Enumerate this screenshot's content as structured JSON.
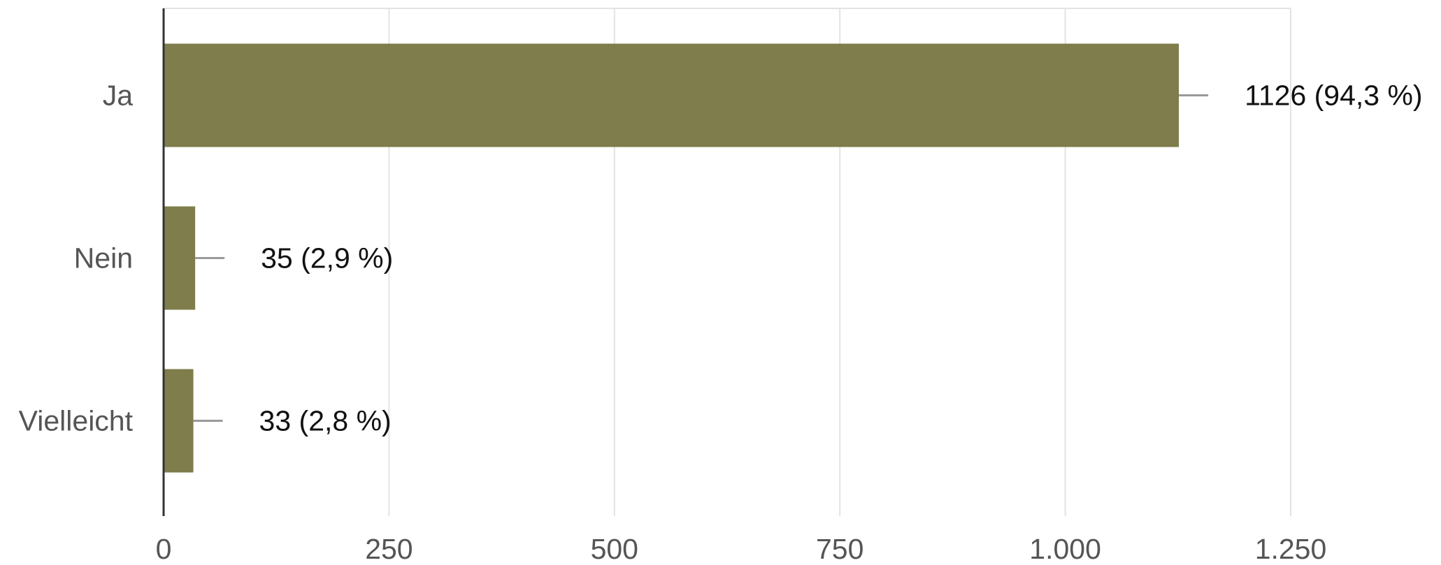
{
  "chart_data": {
    "type": "bar",
    "orientation": "horizontal",
    "title": "",
    "xlabel": "",
    "ylabel": "",
    "categories": [
      "Ja",
      "Nein",
      "Vielleicht"
    ],
    "values": [
      1126,
      35,
      33
    ],
    "data_labels": [
      "1126 (94,3 %)",
      "35 (2,9 %)",
      "33 (2,8 %)"
    ],
    "xlim": [
      0,
      1250
    ],
    "x_ticks": [
      0,
      250,
      500,
      750,
      1000,
      1250
    ],
    "x_tick_labels": [
      "0",
      "250",
      "500",
      "750",
      "1.000",
      "1.250"
    ],
    "grid": true,
    "legend": "none",
    "colors": {
      "bar": "#7e7d4b",
      "grid": "#e3e3e3",
      "axis": "#333333",
      "leader": "#9a9a9a"
    }
  }
}
